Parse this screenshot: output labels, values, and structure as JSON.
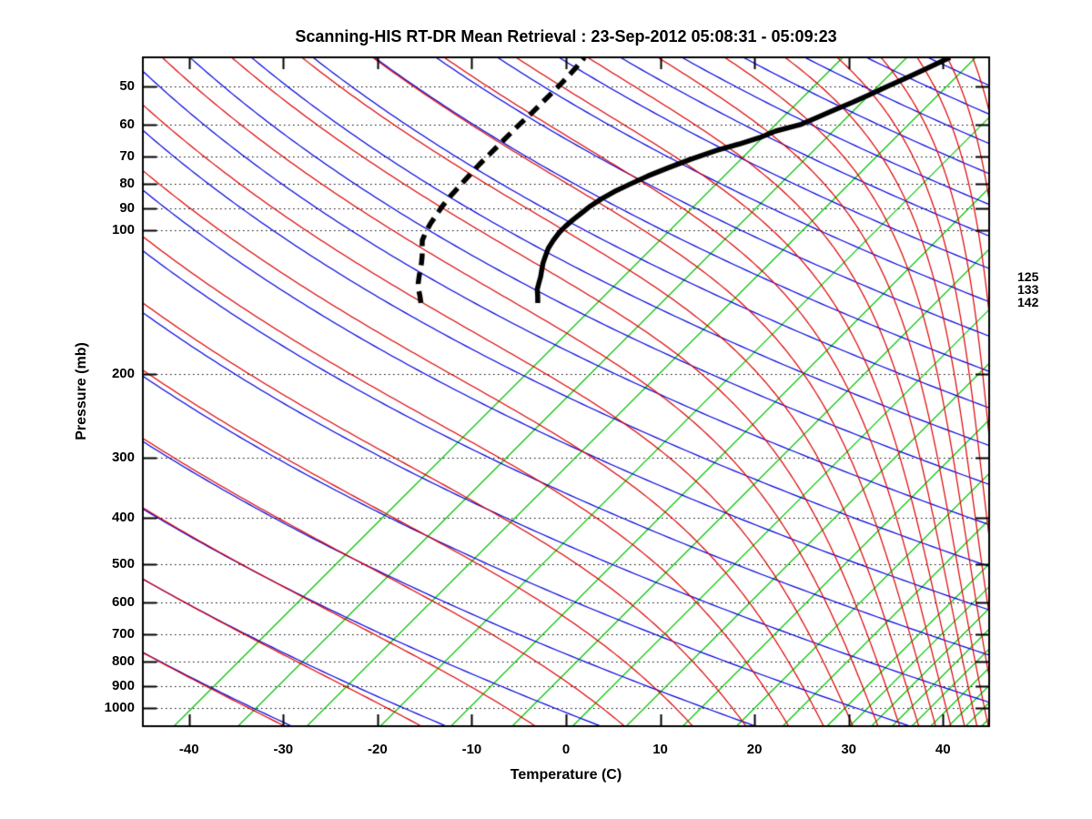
{
  "title": "Scanning-HIS RT-DR Mean Retrieval : 23-Sep-2012 05:08:31 - 05:09:23",
  "axes": {
    "x_label": "Temperature (C)",
    "y_label": "Pressure (mb)",
    "x_ticks": [
      -40,
      -30,
      -20,
      -10,
      0,
      10,
      20,
      30,
      40
    ],
    "y_ticks": [
      50,
      60,
      70,
      80,
      90,
      100,
      200,
      300,
      400,
      500,
      600,
      700,
      800,
      900,
      1000
    ]
  },
  "right_level_labels": [
    "125",
    "133",
    "142"
  ],
  "colors": {
    "isobar": "#000000",
    "mixing_ratio_line": "#00c400",
    "dry_adiabat": "#0000dd",
    "moist_adiabat": "#dd0000",
    "temperature_trace": "#000000",
    "dewpoint_trace": "#000000",
    "background": "#ffffff"
  },
  "chart_data": {
    "type": "line",
    "subtype": "skewt-log-p",
    "title": "Scanning-HIS RT-DR Mean Retrieval : 23-Sep-2012 05:08:31 - 05:09:23",
    "xlabel": "Temperature (C)",
    "ylabel": "Pressure (mb)",
    "x_range_c": [
      -44.9,
      44.9
    ],
    "pressure_range_mb": [
      43.46,
      1091.6
    ],
    "skew_deg": 45,
    "grid": "dotted-horizontal-isobars",
    "isobar_lines_mb": [
      50,
      60,
      70,
      80,
      90,
      100,
      200,
      300,
      400,
      500,
      600,
      700,
      800,
      900,
      1000
    ],
    "right_level_marks_mb": [
      125,
      133,
      142
    ],
    "dry_adiabats_theta_k": [
      222,
      238,
      254,
      270,
      286,
      302,
      318,
      334,
      350,
      366,
      382,
      398,
      414,
      430,
      446,
      462,
      478,
      494,
      510,
      526,
      542,
      558,
      574,
      590,
      606,
      622
    ],
    "moist_adiabats_theta_e_k": [
      222,
      238,
      254,
      270,
      286,
      302,
      318,
      334,
      350,
      366,
      382,
      398,
      414,
      430,
      446,
      462,
      478,
      494,
      510,
      526,
      542,
      558,
      574,
      590,
      606,
      622
    ],
    "mixing_lines_bottom_temp_c": [
      -41.6,
      -34.8,
      -27.5,
      -19.7,
      -12.2,
      -5.7,
      0.7,
      6.4,
      12.4,
      18.1,
      23.0,
      27.7,
      30.1,
      32.4,
      34.6,
      36.7,
      38.7,
      40.6,
      42.4,
      44.1
    ],
    "series": [
      {
        "name": "temperature",
        "style": "solid-black-thick",
        "points_p_t": [
          [
            142,
            -47.9
          ],
          [
            137,
            -48.7
          ],
          [
            133,
            -49.4
          ],
          [
            129,
            -49.9
          ],
          [
            125,
            -50.4
          ],
          [
            121,
            -51.0
          ],
          [
            117,
            -51.6
          ],
          [
            113,
            -52.1
          ],
          [
            109,
            -52.6
          ],
          [
            105,
            -52.9
          ],
          [
            101,
            -53.1
          ],
          [
            98,
            -53.1
          ],
          [
            95,
            -53.0
          ],
          [
            92,
            -52.8
          ],
          [
            89,
            -52.6
          ],
          [
            86,
            -52.2
          ],
          [
            83,
            -51.6
          ],
          [
            80,
            -50.7
          ],
          [
            77,
            -49.7
          ],
          [
            74,
            -48.4
          ],
          [
            71,
            -46.9
          ],
          [
            68,
            -45.1
          ],
          [
            66,
            -43.4
          ],
          [
            64,
            -41.9
          ],
          [
            62,
            -40.9
          ],
          [
            60,
            -38.9
          ],
          [
            58,
            -37.9
          ],
          [
            56,
            -36.9
          ],
          [
            54,
            -35.8
          ],
          [
            52,
            -34.8
          ],
          [
            50,
            -33.8
          ],
          [
            48,
            -32.7
          ],
          [
            46,
            -31.6
          ],
          [
            44,
            -30.5
          ],
          [
            43.5,
            -30.2
          ]
        ]
      },
      {
        "name": "dewpoint",
        "style": "dashed-black-thick",
        "points_p_t": [
          [
            142,
            -60.3
          ],
          [
            137,
            -61.2
          ],
          [
            133,
            -62.0
          ],
          [
            129,
            -62.7
          ],
          [
            125,
            -63.3
          ],
          [
            121,
            -63.9
          ],
          [
            117,
            -64.5
          ],
          [
            113,
            -65.2
          ],
          [
            109,
            -66.0
          ],
          [
            105,
            -66.8
          ],
          [
            101,
            -67.3
          ],
          [
            97,
            -67.7
          ],
          [
            93,
            -68.0
          ],
          [
            89,
            -68.3
          ],
          [
            85,
            -68.5
          ],
          [
            81,
            -68.6
          ],
          [
            77,
            -68.7
          ],
          [
            73,
            -68.8
          ],
          [
            69,
            -68.8
          ],
          [
            65,
            -68.8
          ],
          [
            61,
            -68.8
          ],
          [
            57,
            -68.7
          ],
          [
            53,
            -68.7
          ],
          [
            49,
            -68.7
          ],
          [
            46,
            -68.8
          ],
          [
            43.5,
            -69.0
          ]
        ]
      }
    ]
  }
}
